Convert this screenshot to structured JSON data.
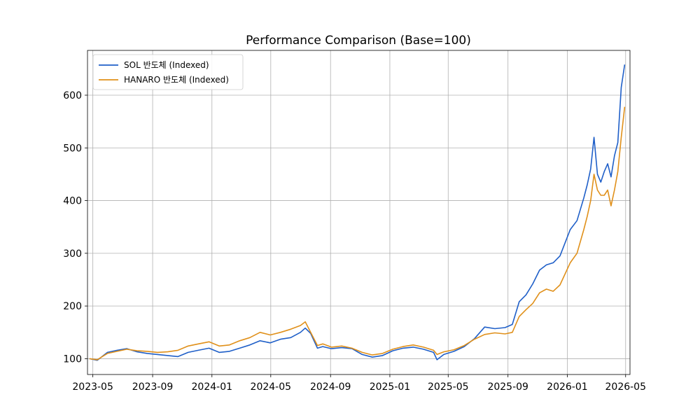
{
  "chart_data": {
    "type": "line",
    "title": "Performance Comparison (Base=100)",
    "xlabel": "",
    "ylabel": "",
    "x_range": [
      "2023-04-20",
      "2026-05-10"
    ],
    "ylim": [
      70,
      685
    ],
    "yticks": [
      100,
      200,
      300,
      400,
      500,
      600
    ],
    "xticks": [
      "2023-05",
      "2023-09",
      "2024-01",
      "2024-05",
      "2024-09",
      "2025-01",
      "2025-05",
      "2025-09",
      "2026-01",
      "2026-05"
    ],
    "grid": true,
    "legend_position": "top-left",
    "x": [
      "2023-04-24",
      "2023-05-10",
      "2023-05-31",
      "2023-06-20",
      "2023-07-10",
      "2023-07-31",
      "2023-08-21",
      "2023-09-11",
      "2023-10-02",
      "2023-10-23",
      "2023-11-13",
      "2023-12-04",
      "2023-12-26",
      "2024-01-16",
      "2024-02-06",
      "2024-02-27",
      "2024-03-19",
      "2024-04-09",
      "2024-04-30",
      "2024-05-21",
      "2024-06-11",
      "2024-07-01",
      "2024-07-11",
      "2024-07-22",
      "2024-08-05",
      "2024-08-16",
      "2024-09-03",
      "2024-09-24",
      "2024-10-15",
      "2024-11-05",
      "2024-11-26",
      "2024-12-17",
      "2025-01-07",
      "2025-01-28",
      "2025-02-18",
      "2025-03-11",
      "2025-04-01",
      "2025-04-08",
      "2025-04-22",
      "2025-05-13",
      "2025-06-03",
      "2025-06-24",
      "2025-07-15",
      "2025-08-05",
      "2025-08-26",
      "2025-09-10",
      "2025-09-24",
      "2025-10-08",
      "2025-10-22",
      "2025-11-05",
      "2025-11-19",
      "2025-12-03",
      "2025-12-17",
      "2026-01-07",
      "2026-01-21",
      "2026-02-04",
      "2026-02-11",
      "2026-02-18",
      "2026-02-25",
      "2026-03-04",
      "2026-03-11",
      "2026-03-18",
      "2026-03-25",
      "2026-04-01",
      "2026-04-08",
      "2026-04-15",
      "2026-04-22",
      "2026-04-29"
    ],
    "series": [
      {
        "name": "SOL 반도체 (Indexed)",
        "color": "#1f5fc8",
        "values": [
          100,
          97,
          112,
          116,
          119,
          113,
          110,
          108,
          106,
          104,
          112,
          116,
          120,
          112,
          114,
          120,
          126,
          134,
          130,
          137,
          140,
          150,
          158,
          148,
          120,
          123,
          119,
          121,
          119,
          108,
          103,
          106,
          115,
          120,
          122,
          118,
          112,
          98,
          108,
          114,
          123,
          138,
          160,
          157,
          159,
          165,
          208,
          221,
          242,
          268,
          278,
          282,
          295,
          345,
          362,
          405,
          430,
          460,
          520,
          450,
          435,
          455,
          470,
          445,
          485,
          510,
          615,
          658
        ]
      },
      {
        "name": "HANARO 반도체 (Indexed)",
        "color": "#e0901a",
        "values": [
          100,
          98,
          110,
          114,
          118,
          115,
          114,
          112,
          113,
          116,
          124,
          128,
          132,
          124,
          126,
          134,
          140,
          150,
          145,
          150,
          156,
          163,
          170,
          150,
          125,
          128,
          122,
          124,
          120,
          112,
          107,
          110,
          118,
          123,
          126,
          122,
          116,
          108,
          113,
          117,
          125,
          137,
          146,
          149,
          147,
          150,
          180,
          193,
          205,
          225,
          232,
          228,
          240,
          282,
          300,
          345,
          370,
          400,
          450,
          420,
          410,
          410,
          420,
          390,
          420,
          455,
          520,
          578
        ]
      }
    ]
  }
}
